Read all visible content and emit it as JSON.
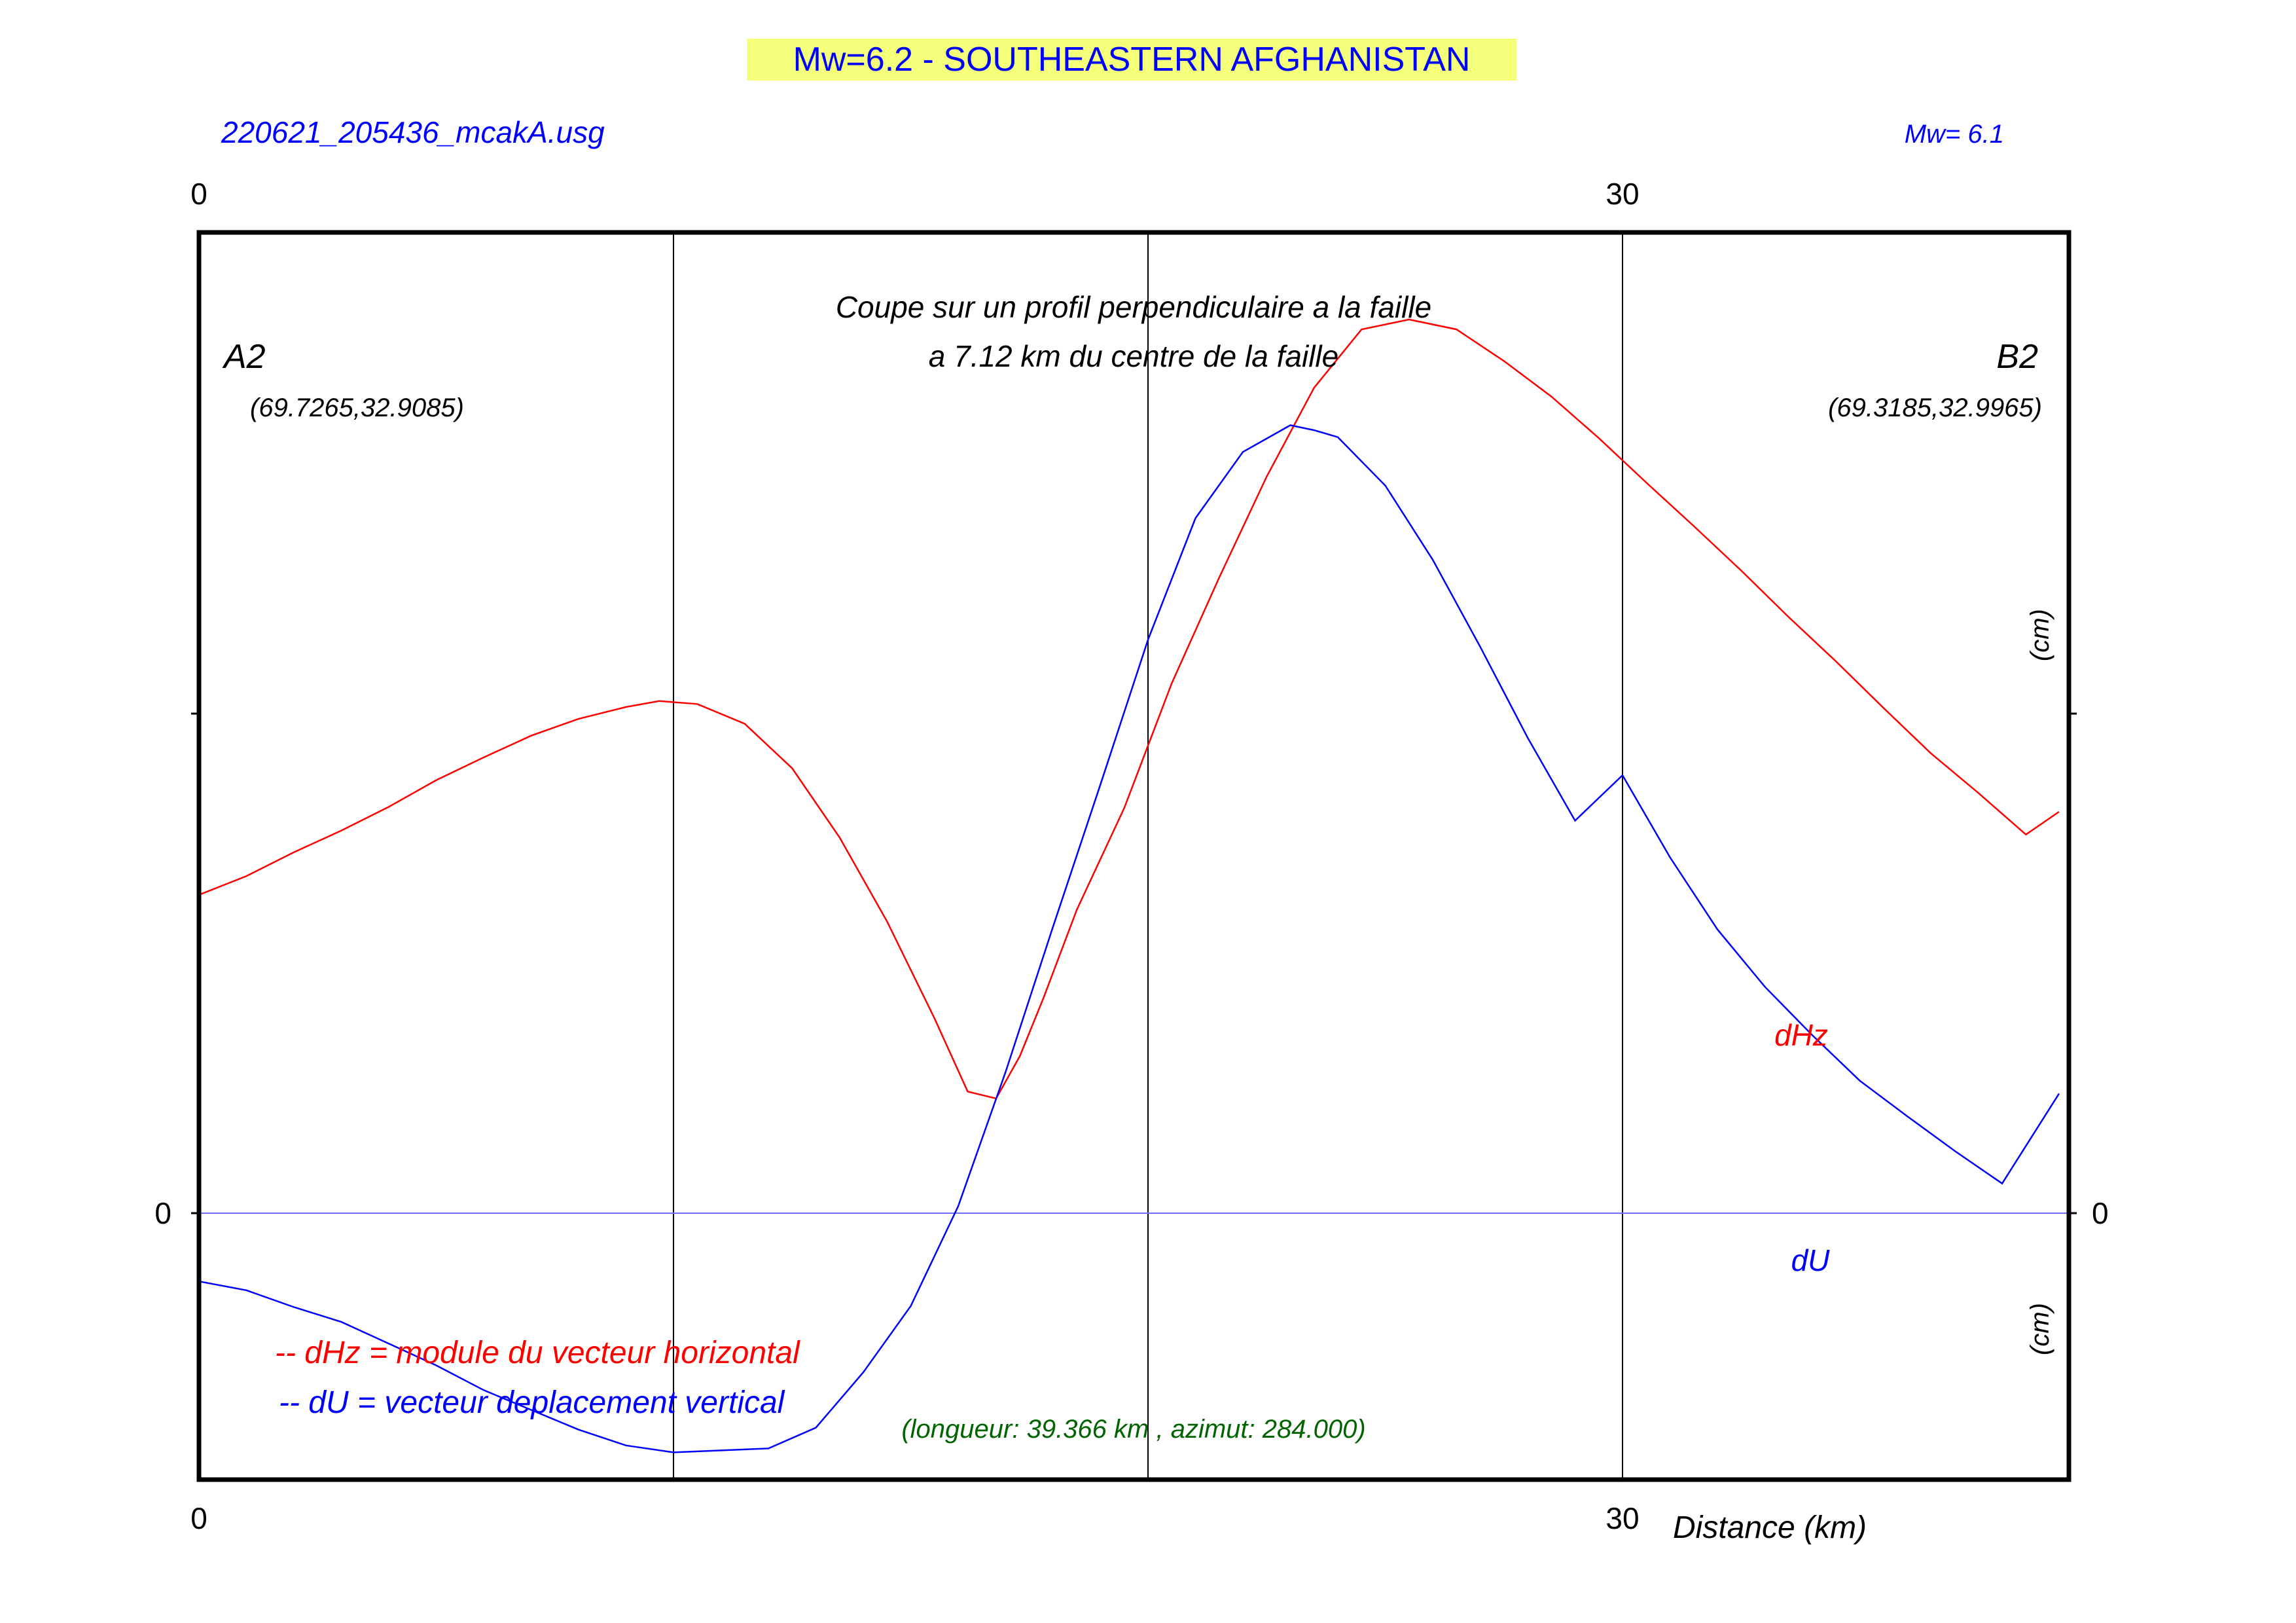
{
  "header": {
    "title": "Mw=6.2 - SOUTHEASTERN AFGHANISTAN",
    "title_highlight_color": "#f4ff7a",
    "source_file": "220621_205436_mcakA.usg",
    "mw_value": "Mw= 6.1"
  },
  "annotations": {
    "profile_line1": "Coupe sur un profil perpendiculaire a la faille",
    "profile_line2": "a 7.12 km du centre de la faille",
    "point_a_label": "A2",
    "point_a_coords": "(69.7265,32.9085)",
    "point_b_label": "B2",
    "point_b_coords": "(69.3185,32.9965)",
    "dhz_label": "dHz",
    "du_label": "dU",
    "unit_upper": "(cm)",
    "unit_lower": "(cm)",
    "legend_dhz": "-- dHz = module du vecteur horizontal",
    "legend_du": "-- dU =  vecteur deplacement vertical",
    "length_azimuth": "(longueur: 39.366 km , azimut: 284.000)"
  },
  "colors": {
    "dhz": "#ff0000",
    "du": "#0000ff",
    "source_file": "#0000ff",
    "length_azimuth": "#006400"
  },
  "chart_data": {
    "type": "line",
    "xlabel": "Distance (km)",
    "xlim": [
      0,
      39.366
    ],
    "x_ticks": [
      0,
      30
    ],
    "x_tick_labels": [
      "0",
      "30"
    ],
    "y_tick_labels": [
      "0",
      "0"
    ],
    "vertical_gridlines": [
      10,
      20,
      30
    ],
    "grid": true,
    "y_scale_note": "y values read from the plot frame; 0 marked, no other labels",
    "series": [
      {
        "name": "dHz",
        "color": "#ff0000",
        "x": [
          0,
          1,
          2,
          3,
          4,
          5,
          6,
          7,
          8,
          9,
          9.7,
          10.5,
          11.5,
          12.5,
          13.5,
          14.5,
          15.5,
          16.2,
          16.8,
          17.3,
          17.8,
          18.5,
          19.5,
          20.5,
          21.5,
          22.5,
          23.5,
          24.5,
          25.5,
          26.5,
          27.5,
          28.5,
          29.5,
          30.5,
          31.5,
          32.5,
          33.5,
          34.5,
          35.5,
          36.5,
          37.5,
          38.5,
          39.2
        ],
        "y": [
          3.22,
          3.41,
          3.65,
          3.87,
          4.11,
          4.38,
          4.61,
          4.83,
          5.0,
          5.12,
          5.18,
          5.15,
          4.95,
          4.5,
          3.8,
          2.95,
          1.97,
          1.23,
          1.16,
          1.59,
          2.18,
          3.07,
          4.1,
          5.36,
          6.43,
          7.45,
          8.35,
          8.94,
          9.04,
          8.94,
          8.62,
          8.26,
          7.84,
          7.39,
          6.95,
          6.5,
          6.03,
          5.58,
          5.11,
          4.65,
          4.25,
          3.83,
          4.06
        ]
      },
      {
        "name": "dU",
        "color": "#0000ff",
        "x": [
          0,
          1,
          2,
          3,
          4,
          5,
          6,
          7,
          8,
          9,
          10,
          11,
          12,
          13,
          14,
          15,
          16,
          17,
          18,
          19,
          20,
          21,
          22,
          23,
          23.5,
          24,
          25,
          26,
          27,
          28,
          29,
          30,
          31,
          32,
          33,
          34,
          35,
          36,
          37,
          38,
          39.2
        ],
        "y": [
          -0.69,
          -0.78,
          -0.95,
          -1.1,
          -1.32,
          -1.54,
          -1.79,
          -1.99,
          -2.19,
          -2.35,
          -2.42,
          -2.4,
          -2.38,
          -2.17,
          -1.61,
          -0.94,
          0.07,
          1.43,
          2.9,
          4.34,
          5.8,
          7.03,
          7.7,
          7.97,
          7.92,
          7.85,
          7.36,
          6.61,
          5.73,
          4.81,
          3.97,
          4.43,
          3.6,
          2.87,
          2.29,
          1.8,
          1.34,
          0.98,
          0.63,
          0.3,
          1.21
        ]
      }
    ]
  }
}
